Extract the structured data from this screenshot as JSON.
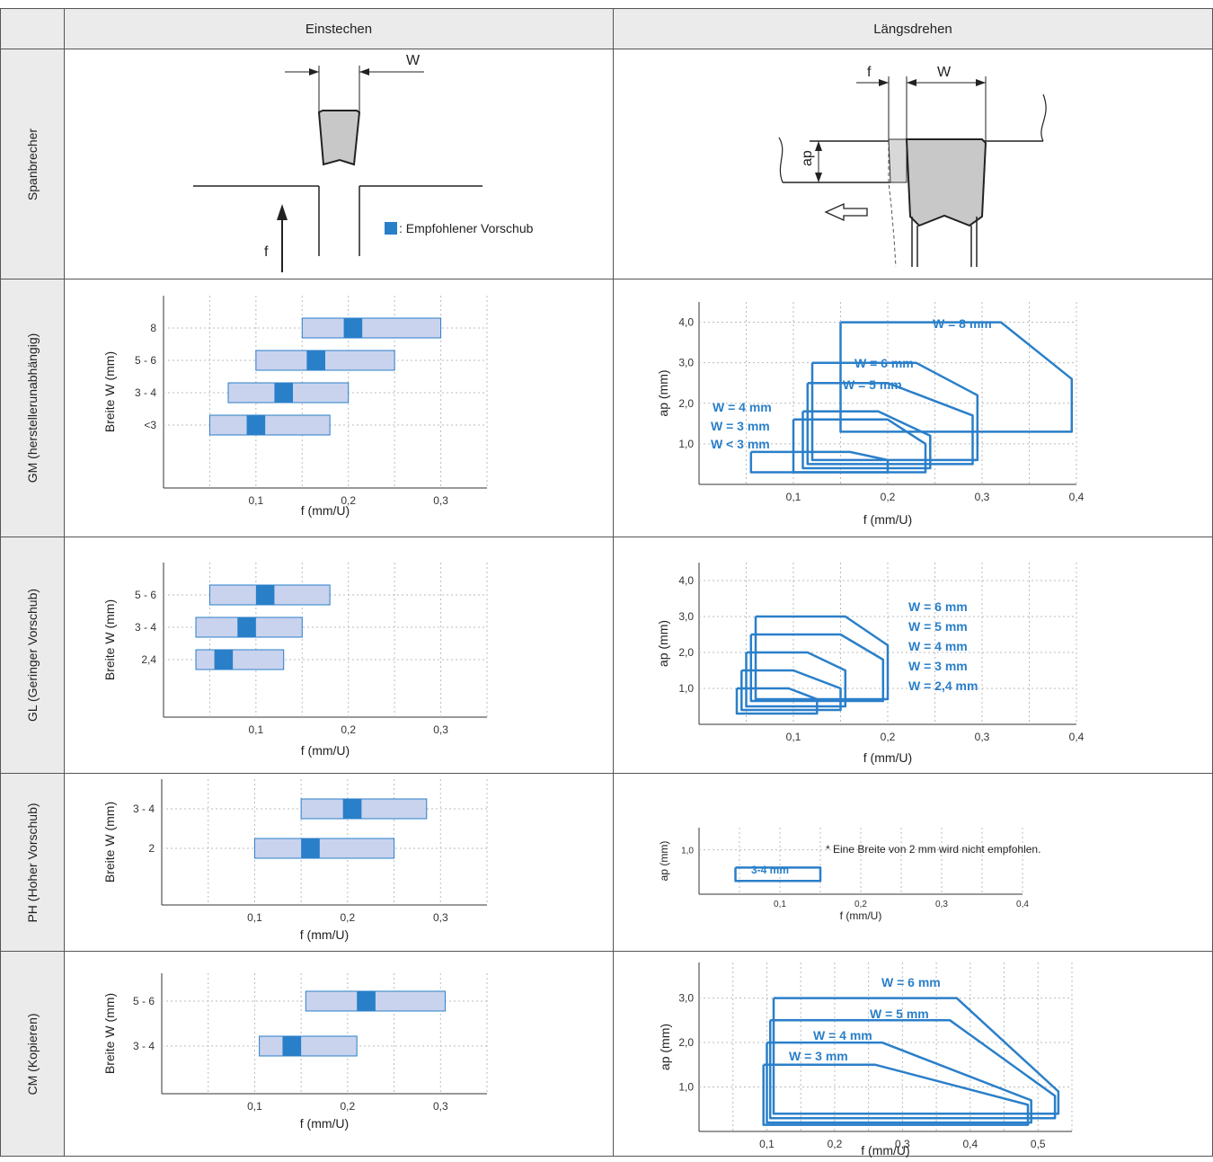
{
  "headers": {
    "col1": "Einstechen",
    "col2": "Längsdrehen"
  },
  "rows": {
    "spanbrecher": "Spanbrecher",
    "gm": "GM (herstellerunabhängig)",
    "gl": "GL (Geringer Vorschub)",
    "ph": "PH (Hoher Vorschub)",
    "cm": "CM (Kopieren)"
  },
  "diagram": {
    "w": "W",
    "f": "f",
    "ap": "ap",
    "legend": ": Empfohlener Vorschub"
  },
  "colors": {
    "recommended": "#2a7fc9",
    "range": "#c9d3ee",
    "outline": "#2a7fc9"
  },
  "labels": {
    "breite": "Breite W (mm)",
    "f_axis": "f (mm/U)",
    "ap_axis": "ap (mm)"
  },
  "chart_data": [
    {
      "id": "gm-einstechen",
      "type": "bar",
      "orientation": "horizontal-range",
      "xlabel": "f (mm/U)",
      "ylabel": "Breite W (mm)",
      "xticks": [
        "0,1",
        "0,2",
        "0,3"
      ],
      "xlim": [
        0,
        0.35
      ],
      "categories": [
        "8",
        "5 - 6",
        "3 - 4",
        "<3"
      ],
      "ranges": [
        [
          0.15,
          0.3
        ],
        [
          0.1,
          0.25
        ],
        [
          0.07,
          0.2
        ],
        [
          0.05,
          0.18
        ]
      ],
      "recommended": [
        [
          0.195,
          0.215
        ],
        [
          0.155,
          0.175
        ],
        [
          0.12,
          0.14
        ],
        [
          0.09,
          0.11
        ]
      ]
    },
    {
      "id": "gl-einstechen",
      "type": "bar",
      "orientation": "horizontal-range",
      "xlabel": "f (mm/U)",
      "ylabel": "Breite W (mm)",
      "xticks": [
        "0,1",
        "0,2",
        "0,3"
      ],
      "xlim": [
        0,
        0.35
      ],
      "categories": [
        "5 - 6",
        "3 - 4",
        "2,4"
      ],
      "ranges": [
        [
          0.05,
          0.18
        ],
        [
          0.035,
          0.15
        ],
        [
          0.035,
          0.13
        ]
      ],
      "recommended": [
        [
          0.1,
          0.12
        ],
        [
          0.08,
          0.1
        ],
        [
          0.055,
          0.075
        ]
      ]
    },
    {
      "id": "ph-einstechen",
      "type": "bar",
      "orientation": "horizontal-range",
      "xlabel": "f (mm/U)",
      "ylabel": "Breite W (mm)",
      "xticks": [
        "0,1",
        "0,2",
        "0,3"
      ],
      "xlim": [
        0,
        0.35
      ],
      "categories": [
        "3 - 4",
        "2"
      ],
      "ranges": [
        [
          0.15,
          0.285
        ],
        [
          0.1,
          0.25
        ]
      ],
      "recommended": [
        [
          0.195,
          0.215
        ],
        [
          0.15,
          0.17
        ]
      ]
    },
    {
      "id": "cm-einstechen",
      "type": "bar",
      "orientation": "horizontal-range",
      "xlabel": "f (mm/U)",
      "ylabel": "Breite W (mm)",
      "xticks": [
        "0,1",
        "0,2",
        "0,3"
      ],
      "xlim": [
        0,
        0.35
      ],
      "categories": [
        "5 - 6",
        "3 - 4"
      ],
      "ranges": [
        [
          0.155,
          0.305
        ],
        [
          0.105,
          0.21
        ]
      ],
      "recommended": [
        [
          0.21,
          0.23
        ],
        [
          0.13,
          0.15
        ]
      ]
    },
    {
      "id": "gm-laengsdrehen",
      "type": "line",
      "xlabel": "f (mm/U)",
      "ylabel": "ap (mm)",
      "xticks": [
        "0,1",
        "0,2",
        "0,3",
        "0,4"
      ],
      "yticks": [
        "1,0",
        "2,0",
        "3,0",
        "4,0"
      ],
      "xlim": [
        0,
        0.4
      ],
      "ylim": [
        0,
        4.5
      ],
      "series": [
        {
          "name": "W = 8 mm",
          "points": [
            [
              0.15,
              4.0
            ],
            [
              0.32,
              4.0
            ],
            [
              0.395,
              2.6
            ],
            [
              0.395,
              1.3
            ],
            [
              0.15,
              1.3
            ],
            [
              0.15,
              4.0
            ]
          ]
        },
        {
          "name": "W = 6 mm",
          "points": [
            [
              0.12,
              3.0
            ],
            [
              0.23,
              3.0
            ],
            [
              0.295,
              2.2
            ],
            [
              0.295,
              0.6
            ],
            [
              0.12,
              0.6
            ],
            [
              0.12,
              3.0
            ]
          ]
        },
        {
          "name": "W = 5 mm",
          "points": [
            [
              0.115,
              2.5
            ],
            [
              0.2,
              2.5
            ],
            [
              0.29,
              1.7
            ],
            [
              0.29,
              0.5
            ],
            [
              0.115,
              0.5
            ],
            [
              0.115,
              2.5
            ]
          ]
        },
        {
          "name": "W = 4 mm",
          "points": [
            [
              0.11,
              1.8
            ],
            [
              0.19,
              1.8
            ],
            [
              0.245,
              1.2
            ],
            [
              0.245,
              0.4
            ],
            [
              0.11,
              0.4
            ],
            [
              0.11,
              1.8
            ]
          ]
        },
        {
          "name": "W = 3 mm",
          "points": [
            [
              0.1,
              1.6
            ],
            [
              0.2,
              1.6
            ],
            [
              0.24,
              1.0
            ],
            [
              0.24,
              0.3
            ],
            [
              0.1,
              0.3
            ],
            [
              0.1,
              1.6
            ]
          ]
        },
        {
          "name": "W < 3 mm",
          "points": [
            [
              0.055,
              0.8
            ],
            [
              0.16,
              0.8
            ],
            [
              0.2,
              0.6
            ],
            [
              0.2,
              0.3
            ],
            [
              0.055,
              0.3
            ],
            [
              0.055,
              0.8
            ]
          ]
        }
      ]
    },
    {
      "id": "gl-laengsdrehen",
      "type": "line",
      "xlabel": "f (mm/U)",
      "ylabel": "ap (mm)",
      "xticks": [
        "0,1",
        "0,2",
        "0,3",
        "0,4"
      ],
      "yticks": [
        "1,0",
        "2,0",
        "3,0",
        "4,0"
      ],
      "xlim": [
        0,
        0.4
      ],
      "ylim": [
        0,
        4.5
      ],
      "series": [
        {
          "name": "W = 6 mm",
          "points": [
            [
              0.06,
              3.0
            ],
            [
              0.155,
              3.0
            ],
            [
              0.2,
              2.2
            ],
            [
              0.2,
              0.7
            ],
            [
              0.06,
              0.7
            ],
            [
              0.06,
              3.0
            ]
          ]
        },
        {
          "name": "W = 5 mm",
          "points": [
            [
              0.055,
              2.5
            ],
            [
              0.15,
              2.5
            ],
            [
              0.195,
              1.8
            ],
            [
              0.195,
              0.65
            ],
            [
              0.055,
              0.65
            ],
            [
              0.055,
              2.5
            ]
          ]
        },
        {
          "name": "W = 4 mm",
          "points": [
            [
              0.05,
              2.0
            ],
            [
              0.115,
              2.0
            ],
            [
              0.155,
              1.5
            ],
            [
              0.155,
              0.5
            ],
            [
              0.05,
              0.5
            ],
            [
              0.05,
              2.0
            ]
          ]
        },
        {
          "name": "W = 3 mm",
          "points": [
            [
              0.045,
              1.5
            ],
            [
              0.1,
              1.5
            ],
            [
              0.15,
              1.0
            ],
            [
              0.15,
              0.4
            ],
            [
              0.045,
              0.4
            ],
            [
              0.045,
              1.5
            ]
          ]
        },
        {
          "name": "W = 2,4 mm",
          "points": [
            [
              0.04,
              1.0
            ],
            [
              0.095,
              1.0
            ],
            [
              0.125,
              0.7
            ],
            [
              0.125,
              0.3
            ],
            [
              0.04,
              0.3
            ],
            [
              0.04,
              1.0
            ]
          ]
        }
      ]
    },
    {
      "id": "ph-laengsdrehen",
      "type": "line",
      "xlabel": "f (mm/U)",
      "ylabel": "ap (mm)",
      "xticks": [
        "0,1",
        "0,2",
        "0,3",
        "0,4"
      ],
      "yticks": [
        "1,0"
      ],
      "xlim": [
        0,
        0.4
      ],
      "ylim": [
        0,
        1.5
      ],
      "annotation": "* Eine Breite von 2 mm wird nicht empfohlen.",
      "series": [
        {
          "name": "3-4 mm",
          "points": [
            [
              0.045,
              0.6
            ],
            [
              0.15,
              0.6
            ],
            [
              0.15,
              0.3
            ],
            [
              0.045,
              0.3
            ],
            [
              0.045,
              0.6
            ]
          ]
        }
      ]
    },
    {
      "id": "cm-laengsdrehen",
      "type": "line",
      "xlabel": "f (mm/U)",
      "ylabel": "ap (mm)",
      "xticks": [
        "0,1",
        "0,2",
        "0,3",
        "0,4",
        "0,5"
      ],
      "yticks": [
        "1,0",
        "2,0",
        "3,0"
      ],
      "xlim": [
        0,
        0.55
      ],
      "ylim": [
        0,
        3.8
      ],
      "series": [
        {
          "name": "W = 6 mm",
          "points": [
            [
              0.11,
              3.0
            ],
            [
              0.38,
              3.0
            ],
            [
              0.53,
              0.9
            ],
            [
              0.53,
              0.4
            ],
            [
              0.11,
              0.4
            ],
            [
              0.11,
              3.0
            ]
          ]
        },
        {
          "name": "W = 5 mm",
          "points": [
            [
              0.105,
              2.5
            ],
            [
              0.37,
              2.5
            ],
            [
              0.525,
              0.8
            ],
            [
              0.525,
              0.3
            ],
            [
              0.105,
              0.3
            ],
            [
              0.105,
              2.5
            ]
          ]
        },
        {
          "name": "W = 4 mm",
          "points": [
            [
              0.1,
              2.0
            ],
            [
              0.27,
              2.0
            ],
            [
              0.49,
              0.7
            ],
            [
              0.49,
              0.2
            ],
            [
              0.1,
              0.2
            ],
            [
              0.1,
              2.0
            ]
          ]
        },
        {
          "name": "W = 3 mm",
          "points": [
            [
              0.095,
              1.5
            ],
            [
              0.26,
              1.5
            ],
            [
              0.485,
              0.6
            ],
            [
              0.485,
              0.15
            ],
            [
              0.095,
              0.15
            ],
            [
              0.095,
              1.5
            ]
          ]
        }
      ]
    }
  ]
}
